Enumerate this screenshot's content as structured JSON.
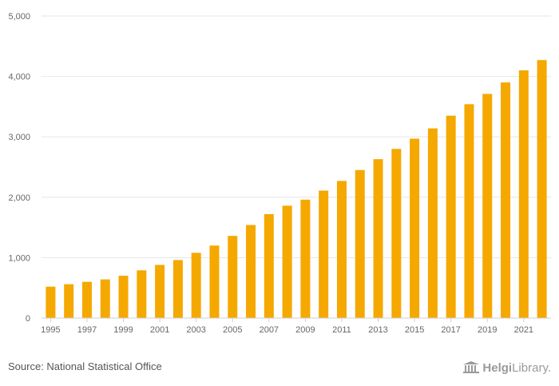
{
  "chart_data": {
    "type": "bar",
    "title": "",
    "xlabel": "",
    "ylabel": "",
    "ylim": [
      0,
      5000
    ],
    "y_ticks": [
      0,
      1000,
      2000,
      3000,
      4000,
      5000
    ],
    "y_tick_labels": [
      "0",
      "1,000",
      "2,000",
      "3,000",
      "4,000",
      "5,000"
    ],
    "grid": true,
    "categories": [
      "1995",
      "1996",
      "1997",
      "1998",
      "1999",
      "2000",
      "2001",
      "2002",
      "2003",
      "2004",
      "2005",
      "2006",
      "2007",
      "2008",
      "2009",
      "2010",
      "2011",
      "2012",
      "2013",
      "2014",
      "2015",
      "2016",
      "2017",
      "2018",
      "2019",
      "2020",
      "2021",
      "2022"
    ],
    "x_tick_labels": [
      "1995",
      "1997",
      "1999",
      "2001",
      "2003",
      "2005",
      "2007",
      "2009",
      "2011",
      "2013",
      "2015",
      "2017",
      "2019",
      "2021"
    ],
    "values": [
      520,
      560,
      600,
      640,
      700,
      790,
      880,
      960,
      1080,
      1200,
      1360,
      1540,
      1720,
      1860,
      1960,
      2110,
      2270,
      2450,
      2630,
      2800,
      2970,
      3140,
      3350,
      3540,
      3710,
      3900,
      4100,
      4270
    ],
    "bar_color": "#f5a800"
  },
  "footer": {
    "source": "Source: National Statistical Office",
    "logo_part1": "Helgi",
    "logo_part2": "Library."
  }
}
